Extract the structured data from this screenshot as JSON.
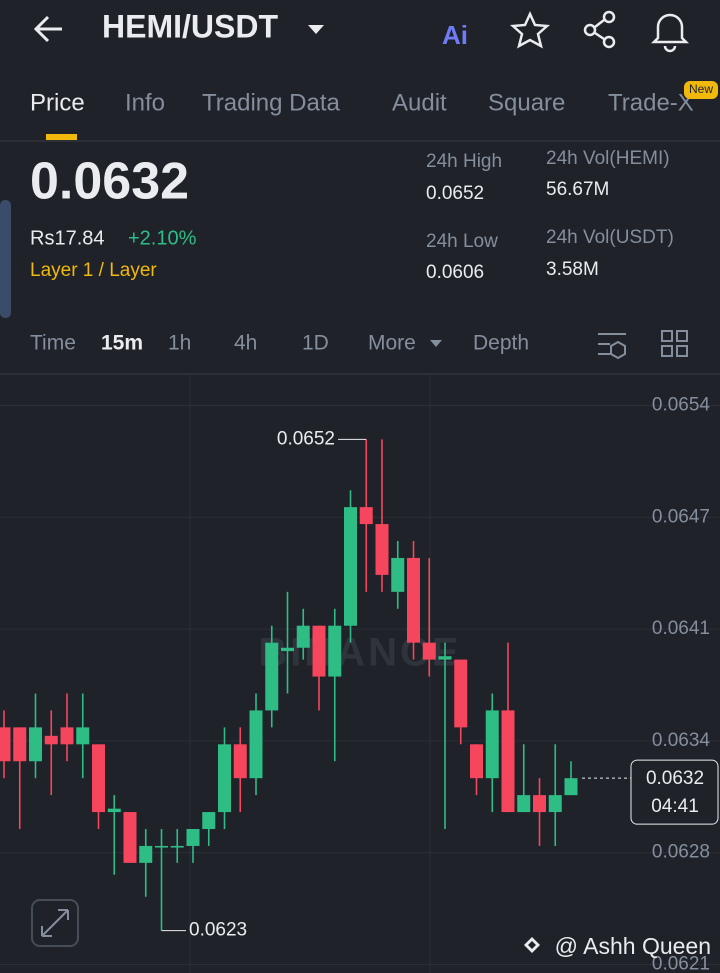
{
  "header": {
    "pair": "HEMI/USDT"
  },
  "tabs": [
    "Price",
    "Info",
    "Trading Data",
    "Audit",
    "Square",
    "Trade-X"
  ],
  "tab_badge": "New",
  "price": {
    "last": "0.0632",
    "fiat": "Rs17.84",
    "change": "+2.10%",
    "tag": "Layer 1 / Layer"
  },
  "stats": [
    {
      "label": "24h High",
      "value": "0.0652"
    },
    {
      "label": "24h Vol(HEMI)",
      "value": "56.67M"
    },
    {
      "label": "24h Low",
      "value": "0.0606"
    },
    {
      "label": "24h Vol(USDT)",
      "value": "3.58M"
    }
  ],
  "intervals": [
    "Time",
    "15m",
    "1h",
    "4h",
    "1D",
    "More",
    "Depth"
  ],
  "chart_data": {
    "type": "candlestick",
    "open": [
      0.0635,
      0.0635,
      0.0633,
      0.06345,
      0.0635,
      0.0634,
      0.0634,
      0.063,
      0.063,
      0.0627,
      0.0628,
      0.0628,
      0.0628,
      0.0629,
      0.063,
      0.0634,
      0.0632,
      0.0636,
      0.06395,
      0.06397,
      0.0641,
      0.0638,
      0.0641,
      0.0648,
      0.0647,
      0.0643,
      0.0645,
      0.064,
      0.0639,
      0.0639,
      0.0634,
      0.0632,
      0.0636,
      0.063,
      0.0631,
      0.063,
      0.0631
    ],
    "high": [
      0.0636,
      0.0635,
      0.0637,
      0.0636,
      0.0637,
      0.0637,
      0.0634,
      0.0631,
      0.063,
      0.0629,
      0.0629,
      0.0629,
      0.0629,
      0.063,
      0.0635,
      0.0635,
      0.0637,
      0.0641,
      0.0643,
      0.0642,
      0.0641,
      0.0642,
      0.0649,
      0.0652,
      0.0652,
      0.0646,
      0.0646,
      0.0645,
      0.064,
      0.0639,
      0.0634,
      0.0637,
      0.064,
      0.0634,
      0.0632,
      0.0634,
      0.0633
    ],
    "low": [
      0.0632,
      0.0629,
      0.0632,
      0.0631,
      0.0633,
      0.0632,
      0.0629,
      0.06263,
      0.0627,
      0.0625,
      0.0623,
      0.0627,
      0.0627,
      0.0628,
      0.0629,
      0.063,
      0.0631,
      0.0635,
      0.0637,
      0.0639,
      0.0636,
      0.0633,
      0.064,
      0.0643,
      0.0643,
      0.0642,
      0.0639,
      0.0638,
      0.0629,
      0.0634,
      0.0631,
      0.063,
      0.063,
      0.063,
      0.0628,
      0.0628,
      0.0631
    ],
    "close": [
      0.0633,
      0.0633,
      0.0635,
      0.0634,
      0.0634,
      0.0635,
      0.063,
      0.06302,
      0.0627,
      0.0628,
      0.0628,
      0.0628,
      0.0629,
      0.063,
      0.0634,
      0.0632,
      0.0636,
      0.064,
      0.06397,
      0.0641,
      0.0638,
      0.0641,
      0.0648,
      0.0647,
      0.0644,
      0.0645,
      0.064,
      0.0639,
      0.06392,
      0.0635,
      0.0632,
      0.0636,
      0.063,
      0.0631,
      0.063,
      0.0631,
      0.0632
    ],
    "up_color": "#2ebd85",
    "down_color": "#f6465d",
    "ylim": [
      0.06205,
      0.06558
    ],
    "yticks": [
      0.0654,
      {
        "value": 0.06474,
        "label": "0.0647"
      },
      {
        "value": 0.06408,
        "label": "0.0641"
      },
      {
        "value": 0.06342,
        "label": "0.0634"
      },
      {
        "value": 0.06276,
        "label": "0.0628"
      },
      0.0621
    ],
    "grid": true,
    "high_marker": 0.0652,
    "low_marker": 0.0623,
    "last_price": 0.0632,
    "countdown": "04:41",
    "watermark": "BINANCE",
    "credit": "@ Ashh Queen"
  }
}
